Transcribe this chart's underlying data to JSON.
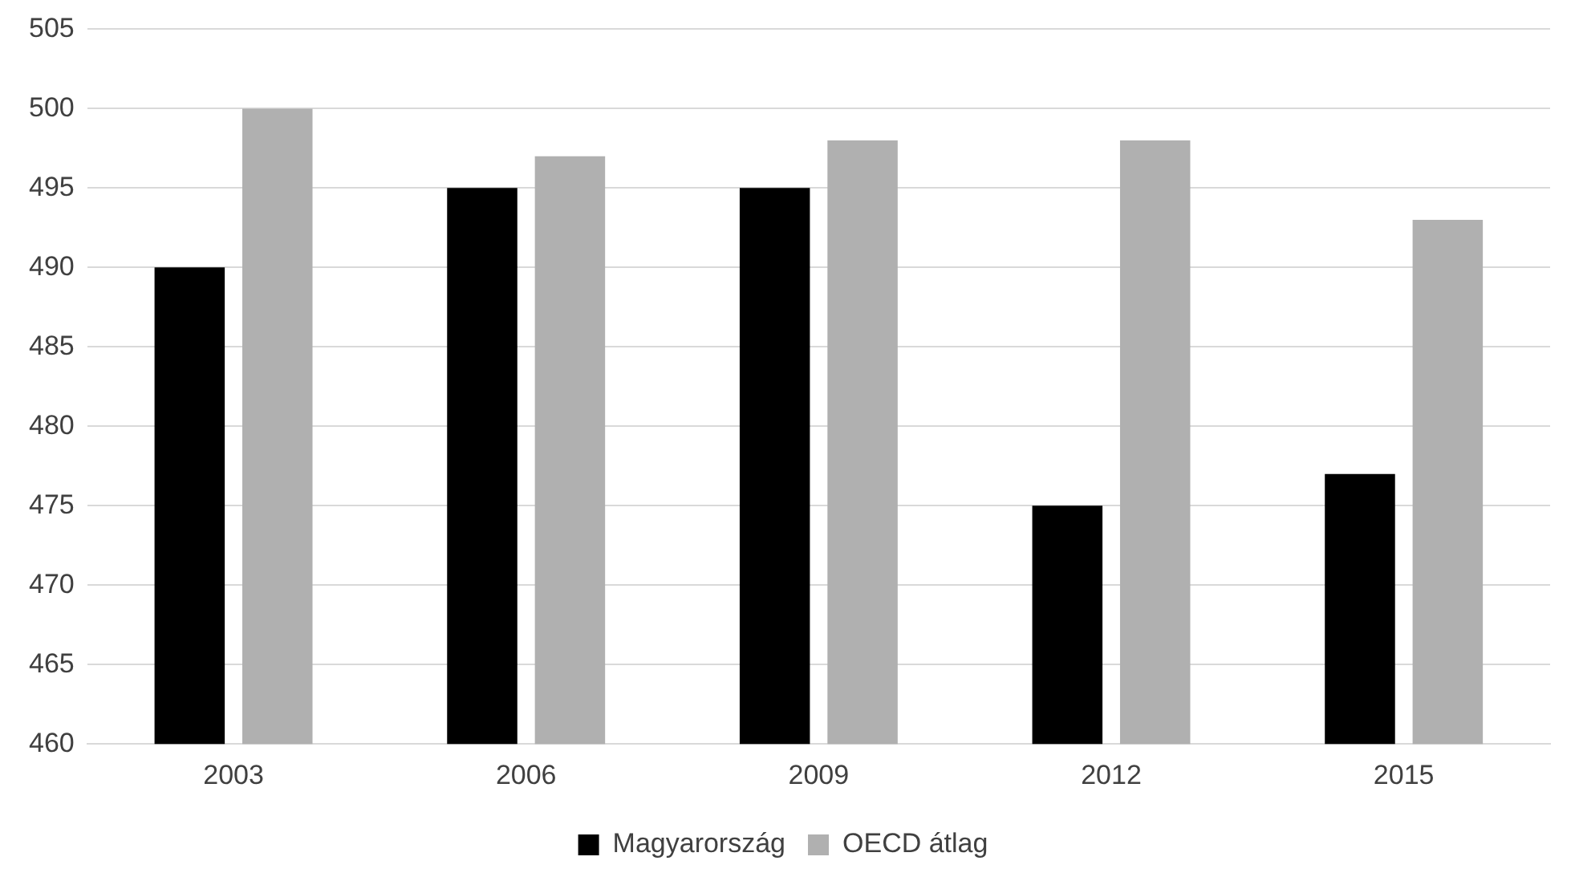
{
  "chart_data": {
    "type": "bar",
    "categories": [
      "2003",
      "2006",
      "2009",
      "2012",
      "2015"
    ],
    "series": [
      {
        "name": "Magyarország",
        "color": "#000000",
        "values": [
          490,
          495,
          495,
          475,
          477
        ]
      },
      {
        "name": "OECD átlag",
        "color": "#b0b0b0",
        "values": [
          500,
          497,
          498,
          498,
          493
        ]
      }
    ],
    "ylim": [
      460,
      505
    ],
    "yticks": [
      460,
      465,
      470,
      475,
      480,
      485,
      490,
      495,
      500,
      505
    ],
    "grid": "y",
    "legend": "bottom"
  }
}
